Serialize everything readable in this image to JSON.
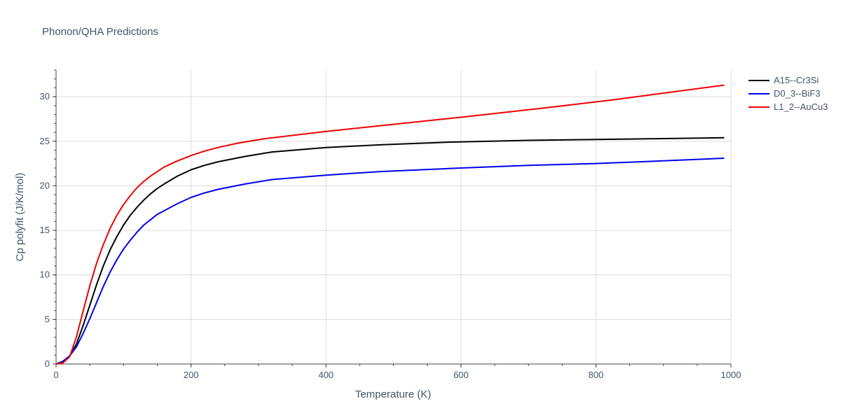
{
  "chart_data": {
    "type": "line",
    "title": "Phonon/QHA Predictions",
    "xlabel": "Temperature (K)",
    "ylabel": "Cp polyfit (J/K/mol)",
    "xlim": [
      0,
      1000
    ],
    "ylim": [
      0,
      33
    ],
    "x_ticks": [
      0,
      200,
      400,
      600,
      800,
      1000
    ],
    "y_ticks": [
      0,
      5,
      10,
      15,
      20,
      25,
      30
    ],
    "grid": true,
    "legend_position": "top-right",
    "series": [
      {
        "name": "A15--Cr3Si",
        "color": "#000000",
        "x": [
          0,
          10,
          20,
          30,
          40,
          50,
          60,
          70,
          80,
          90,
          100,
          110,
          120,
          130,
          140,
          150,
          160,
          180,
          200,
          220,
          240,
          280,
          320,
          400,
          480,
          580,
          700,
          800,
          900,
          990
        ],
        "y": [
          0,
          0.2,
          0.9,
          2.2,
          4.3,
          6.6,
          8.9,
          11.0,
          12.8,
          14.3,
          15.6,
          16.7,
          17.6,
          18.4,
          19.1,
          19.7,
          20.2,
          21.1,
          21.8,
          22.3,
          22.7,
          23.3,
          23.8,
          24.3,
          24.6,
          24.9,
          25.1,
          25.2,
          25.3,
          25.4
        ]
      },
      {
        "name": "D0_3--BiF3",
        "color": "#0000ee",
        "x": [
          0,
          10,
          20,
          30,
          40,
          50,
          60,
          70,
          80,
          90,
          100,
          110,
          120,
          130,
          140,
          150,
          160,
          180,
          200,
          220,
          240,
          280,
          320,
          400,
          480,
          600,
          700,
          800,
          900,
          990
        ],
        "y": [
          0,
          0.3,
          0.9,
          1.9,
          3.4,
          5.1,
          6.9,
          8.7,
          10.3,
          11.7,
          12.9,
          13.9,
          14.8,
          15.6,
          16.2,
          16.8,
          17.2,
          18.0,
          18.7,
          19.2,
          19.6,
          20.2,
          20.7,
          21.2,
          21.6,
          22.0,
          22.3,
          22.5,
          22.8,
          23.1
        ]
      },
      {
        "name": "L1_2--AuCu3",
        "color": "#ee0000",
        "x": [
          0,
          10,
          20,
          30,
          40,
          50,
          60,
          70,
          80,
          90,
          100,
          110,
          120,
          130,
          140,
          150,
          160,
          180,
          200,
          220,
          240,
          270,
          310,
          400,
          500,
          600,
          730,
          820,
          920,
          990
        ],
        "y": [
          0,
          0.1,
          0.8,
          3.0,
          5.9,
          8.8,
          11.3,
          13.4,
          15.2,
          16.7,
          17.9,
          18.9,
          19.8,
          20.5,
          21.1,
          21.6,
          22.1,
          22.8,
          23.4,
          23.9,
          24.3,
          24.8,
          25.3,
          26.1,
          26.9,
          27.7,
          28.8,
          29.6,
          30.6,
          31.3
        ]
      }
    ]
  }
}
